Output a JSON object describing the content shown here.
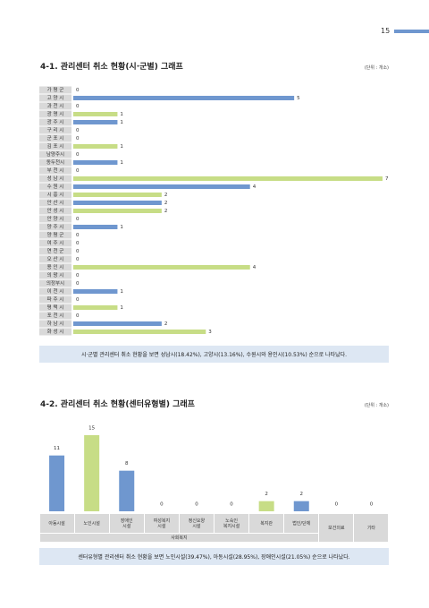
{
  "page_number": "15",
  "sections": [
    {
      "title": "4-1. 관리센터 취소 현황(시·군별) 그래프",
      "unit": "(단위 : 개소)",
      "chart_data": {
        "type": "hbar",
        "categories": [
          "가 평 군",
          "고 양 시",
          "과 천 시",
          "광 명 시",
          "광 주 시",
          "구 리 시",
          "군 포 시",
          "김 포 시",
          "남양주시",
          "동두천시",
          "부 천 시",
          "성 남 시",
          "수 원 시",
          "시 흥 시",
          "안 산 시",
          "안 성 시",
          "안 양 시",
          "양 주 시",
          "양 평 군",
          "여 주 시",
          "연 천 군",
          "오 산 시",
          "용 인 시",
          "의 왕 시",
          "의정부시",
          "이 천 시",
          "파 주 시",
          "평 택 시",
          "포 천 시",
          "하 남 시",
          "화 성 시"
        ],
        "values": [
          0,
          5,
          0,
          1,
          1,
          0,
          0,
          1,
          0,
          1,
          0,
          7,
          4,
          2,
          2,
          2,
          0,
          1,
          0,
          0,
          0,
          0,
          4,
          0,
          0,
          1,
          0,
          1,
          0,
          2,
          3
        ],
        "colors": [
          "#6f97cf",
          "#6f97cf",
          "#6f97cf",
          "#c7dd86",
          "#6f97cf",
          "#6f97cf",
          "#6f97cf",
          "#c7dd86",
          "#6f97cf",
          "#6f97cf",
          "#6f97cf",
          "#c7dd86",
          "#6f97cf",
          "#c7dd86",
          "#6f97cf",
          "#c7dd86",
          "#6f97cf",
          "#6f97cf",
          "#6f97cf",
          "#6f97cf",
          "#6f97cf",
          "#6f97cf",
          "#c7dd86",
          "#6f97cf",
          "#6f97cf",
          "#6f97cf",
          "#6f97cf",
          "#c7dd86",
          "#6f97cf",
          "#6f97cf",
          "#c7dd86"
        ]
      },
      "note": "시·군별 관리센터 취소 현황을 보면 성남시(18.42%), 고양시(13.16%), 수원시와 용인시(10.53%) 순으로 나타났다."
    },
    {
      "title": "4-2. 관리센터 취소 현황(센터유형별) 그래프",
      "unit": "(단위 : 개소)",
      "chart_data": {
        "type": "bar",
        "categories": [
          "아동시설",
          "노인시설",
          "장애인\n시설",
          "여성복지\n시설",
          "정신요양\n시설",
          "노숙인\n복지시설",
          "복지관",
          "법인/단체",
          "보건의료",
          "기타"
        ],
        "values": [
          11,
          15,
          8,
          0,
          0,
          0,
          2,
          2,
          0,
          0
        ],
        "colors": [
          "#6f97cf",
          "#c7dd86",
          "#6f97cf",
          "#6f97cf",
          "#6f97cf",
          "#6f97cf",
          "#c7dd86",
          "#6f97cf",
          "#6f97cf",
          "#6f97cf"
        ],
        "group": {
          "label": "사회복지",
          "count": 8
        }
      },
      "note": "센터유형별 관리센터 취소 현황을 보면 노인시설(39.47%), 아동시설(28.95%), 장애인시설(21.05%) 순으로 나타났다."
    }
  ]
}
